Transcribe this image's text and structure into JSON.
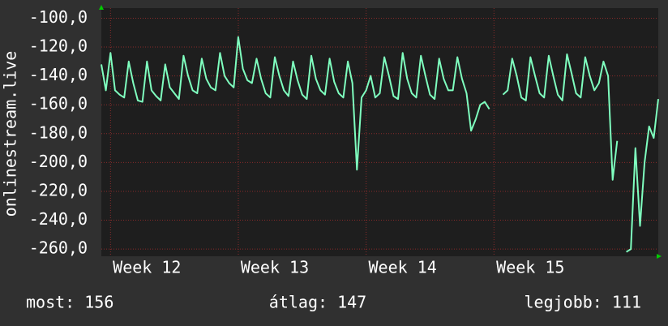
{
  "chart_data": {
    "type": "line",
    "y_label": "onlinestream.live",
    "x": [
      0,
      0.25,
      0.5,
      0.75,
      1,
      1.25,
      1.5,
      1.75,
      2,
      2.25,
      2.5,
      2.75,
      3,
      3.25,
      3.5,
      3.75,
      4,
      4.25,
      4.5,
      4.75,
      5,
      5.25,
      5.5,
      5.75,
      6,
      6.25,
      6.5,
      6.75,
      7,
      7.25,
      7.5,
      7.75,
      8,
      8.25,
      8.5,
      8.75,
      9,
      9.25,
      9.5,
      9.75,
      10,
      10.25,
      10.5,
      10.75,
      11,
      11.25,
      11.5,
      11.75,
      12,
      12.25,
      12.5,
      12.75,
      13,
      13.25,
      13.5,
      13.75,
      14,
      14.25,
      14.5,
      14.75,
      15,
      15.25,
      15.5,
      15.75,
      16,
      16.25,
      16.5,
      16.75,
      17,
      17.25,
      17.5,
      17.75,
      18,
      18.25,
      18.5,
      18.75,
      19,
      19.25,
      19.5,
      19.75,
      20,
      20.25,
      20.5,
      20.75,
      21,
      21.25,
      21.5,
      21.75,
      22,
      22.25,
      22.5,
      22.75,
      23,
      23.25,
      23.5,
      23.75,
      24,
      24.25,
      24.5,
      24.75,
      25,
      25.25,
      25.5,
      25.75,
      26,
      26.25,
      26.5,
      26.75,
      27,
      27.25,
      27.5,
      27.75,
      28,
      28.25,
      28.5,
      28.75,
      29,
      29.25,
      29.5,
      29.75,
      30,
      30.25,
      30.5
    ],
    "series": [
      {
        "color": "#7fffbf",
        "values": [
          -132,
          -150,
          -124,
          -150,
          -153,
          -155,
          -130,
          -145,
          -157,
          -158,
          -130,
          -150,
          -154,
          -157,
          -132,
          -148,
          -152,
          -156,
          -126,
          -140,
          -150,
          -152,
          -128,
          -142,
          -148,
          -150,
          -124,
          -140,
          -145,
          -148,
          -113,
          -135,
          -143,
          -145,
          -128,
          -142,
          -152,
          -155,
          -127,
          -140,
          -150,
          -154,
          -130,
          -143,
          -153,
          -156,
          -126,
          -142,
          -150,
          -153,
          -128,
          -144,
          -152,
          -155,
          -130,
          -145,
          -205,
          -155,
          -150,
          -140,
          -155,
          -152,
          -127,
          -140,
          -154,
          -156,
          -124,
          -142,
          -152,
          -155,
          -126,
          -140,
          -153,
          -156,
          -128,
          -142,
          -150,
          -150,
          -127,
          -142,
          -152,
          -178,
          -170,
          -160,
          -158,
          -163,
          null,
          null,
          -153,
          -150,
          -128,
          -140,
          -155,
          -157,
          -127,
          -140,
          -152,
          -155,
          -126,
          -140,
          -153,
          -157,
          -125,
          -138,
          -152,
          -155,
          -127,
          -140,
          -150,
          -145,
          -130,
          -140,
          -212,
          -185,
          null,
          -262,
          -260,
          -190,
          -244,
          -200,
          -175,
          -183,
          -156
        ]
      }
    ],
    "xlim": [
      0,
      30.5
    ],
    "xticks": [
      {
        "value": 2.5,
        "label": "Week 12"
      },
      {
        "value": 9.5,
        "label": "Week 13"
      },
      {
        "value": 16.5,
        "label": "Week 14"
      },
      {
        "value": 23.5,
        "label": "Week 15"
      }
    ],
    "ylim": [
      -265,
      -93
    ],
    "yticks": [
      {
        "value": -260,
        "label": "-260,0"
      },
      {
        "value": -240,
        "label": "-240,0"
      },
      {
        "value": -220,
        "label": "-220,0"
      },
      {
        "value": -200,
        "label": "-200,0"
      },
      {
        "value": -180,
        "label": "-180,0"
      },
      {
        "value": -160,
        "label": "-160,0"
      },
      {
        "value": -140,
        "label": "-140,0"
      },
      {
        "value": -120,
        "label": "-120,0"
      },
      {
        "value": -100,
        "label": "-100,0"
      }
    ],
    "grid": true,
    "stats": [
      "most: 156",
      "átlag: 147",
      "legjobb: 111"
    ]
  }
}
